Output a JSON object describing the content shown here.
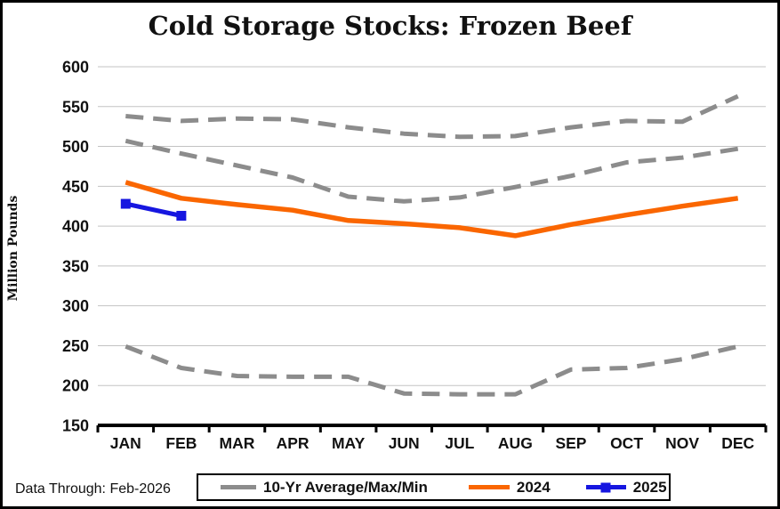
{
  "title": "Cold Storage Stocks: Frozen Beef",
  "footer": {
    "data_through": "Data Through: Feb-2026"
  },
  "legend": {
    "items": [
      {
        "label": "10-Yr Average/Max/Min",
        "color": "#8C8C8C",
        "style": "dashed"
      },
      {
        "label": "2024",
        "color": "#FA6600",
        "style": "solid"
      },
      {
        "label": "2025",
        "color": "#1616E0",
        "style": "solid-square-marker"
      }
    ]
  },
  "colors": {
    "gray_band": "#8C8C8C",
    "line_2024": "#FA6600",
    "line_2025": "#1616E0",
    "gridline": "#C3C3C3",
    "axis": "#000000",
    "text": "#111111"
  },
  "chart_data": {
    "type": "line",
    "title": "Cold Storage Stocks: Frozen Beef",
    "xlabel": "",
    "ylabel": "Million Pounds",
    "ylim": [
      150,
      600
    ],
    "ytick_step": 50,
    "grid": "horizontal",
    "legend_position": "bottom",
    "categories": [
      "JAN",
      "FEB",
      "MAR",
      "APR",
      "MAY",
      "JUN",
      "JUL",
      "AUG",
      "SEP",
      "OCT",
      "NOV",
      "DEC"
    ],
    "series": [
      {
        "name": "10-Yr Max",
        "color": "#8C8C8C",
        "dashed": true,
        "width": 5,
        "values": [
          538,
          532,
          535,
          534,
          524,
          516,
          512,
          513,
          524,
          532,
          531,
          563
        ]
      },
      {
        "name": "10-Yr Average",
        "color": "#8C8C8C",
        "dashed": true,
        "width": 5,
        "values": [
          507,
          491,
          476,
          461,
          437,
          431,
          436,
          449,
          463,
          480,
          486,
          497
        ]
      },
      {
        "name": "10-Yr Min",
        "color": "#8C8C8C",
        "dashed": true,
        "width": 5,
        "values": [
          249,
          222,
          212,
          211,
          211,
          190,
          189,
          189,
          220,
          222,
          233,
          249
        ]
      },
      {
        "name": "2024",
        "color": "#FA6600",
        "dashed": false,
        "width": 5.5,
        "values": [
          455,
          435,
          427,
          420,
          407,
          403,
          398,
          388,
          402,
          414,
          425,
          435
        ]
      },
      {
        "name": "2025",
        "color": "#1616E0",
        "dashed": false,
        "width": 5,
        "marker": "square",
        "values": [
          428,
          413
        ]
      }
    ]
  }
}
